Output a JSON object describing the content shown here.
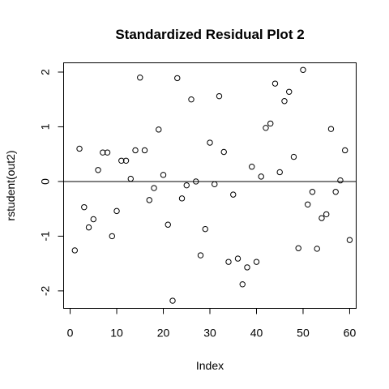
{
  "chart_data": {
    "type": "scatter",
    "title": "Standardized Residual Plot 2",
    "xlabel": "Index",
    "ylabel": "rstudent(out2)",
    "xlim": [
      -1.4,
      61.4
    ],
    "ylim": [
      -2.32,
      2.17
    ],
    "x_ticks": [
      0,
      10,
      20,
      30,
      40,
      50,
      60
    ],
    "y_ticks": [
      -2,
      -1,
      0,
      1,
      2
    ],
    "reference_line_y": 0,
    "grid": false,
    "legend": "none",
    "marker": "open-circle",
    "x": [
      1,
      2,
      3,
      4,
      5,
      6,
      7,
      8,
      9,
      10,
      11,
      12,
      13,
      14,
      15,
      16,
      17,
      18,
      19,
      20,
      21,
      22,
      23,
      24,
      25,
      26,
      27,
      28,
      29,
      30,
      31,
      32,
      33,
      34,
      35,
      36,
      37,
      38,
      39,
      40,
      41,
      42,
      43,
      44,
      45,
      46,
      47,
      48,
      49,
      50,
      51,
      52,
      53,
      54,
      55,
      56,
      57,
      58,
      59,
      60
    ],
    "y": [
      -1.26,
      0.6,
      -0.47,
      -0.84,
      -0.69,
      0.21,
      0.53,
      0.53,
      -1.0,
      -0.54,
      0.38,
      0.38,
      0.05,
      0.57,
      1.9,
      0.57,
      -0.34,
      -0.12,
      0.95,
      0.12,
      -0.79,
      -2.18,
      1.89,
      -0.31,
      -0.07,
      1.5,
      0.0,
      -1.35,
      -0.87,
      0.71,
      -0.05,
      1.56,
      0.54,
      -1.47,
      -0.24,
      -1.41,
      -1.88,
      -1.57,
      0.27,
      -1.47,
      0.09,
      0.98,
      1.06,
      1.79,
      0.17,
      1.47,
      1.64,
      0.45,
      -1.22,
      2.04,
      -0.42,
      -0.19,
      -1.23,
      -0.67,
      -0.6,
      0.96,
      -0.19,
      0.02,
      0.57,
      -1.07
    ]
  }
}
